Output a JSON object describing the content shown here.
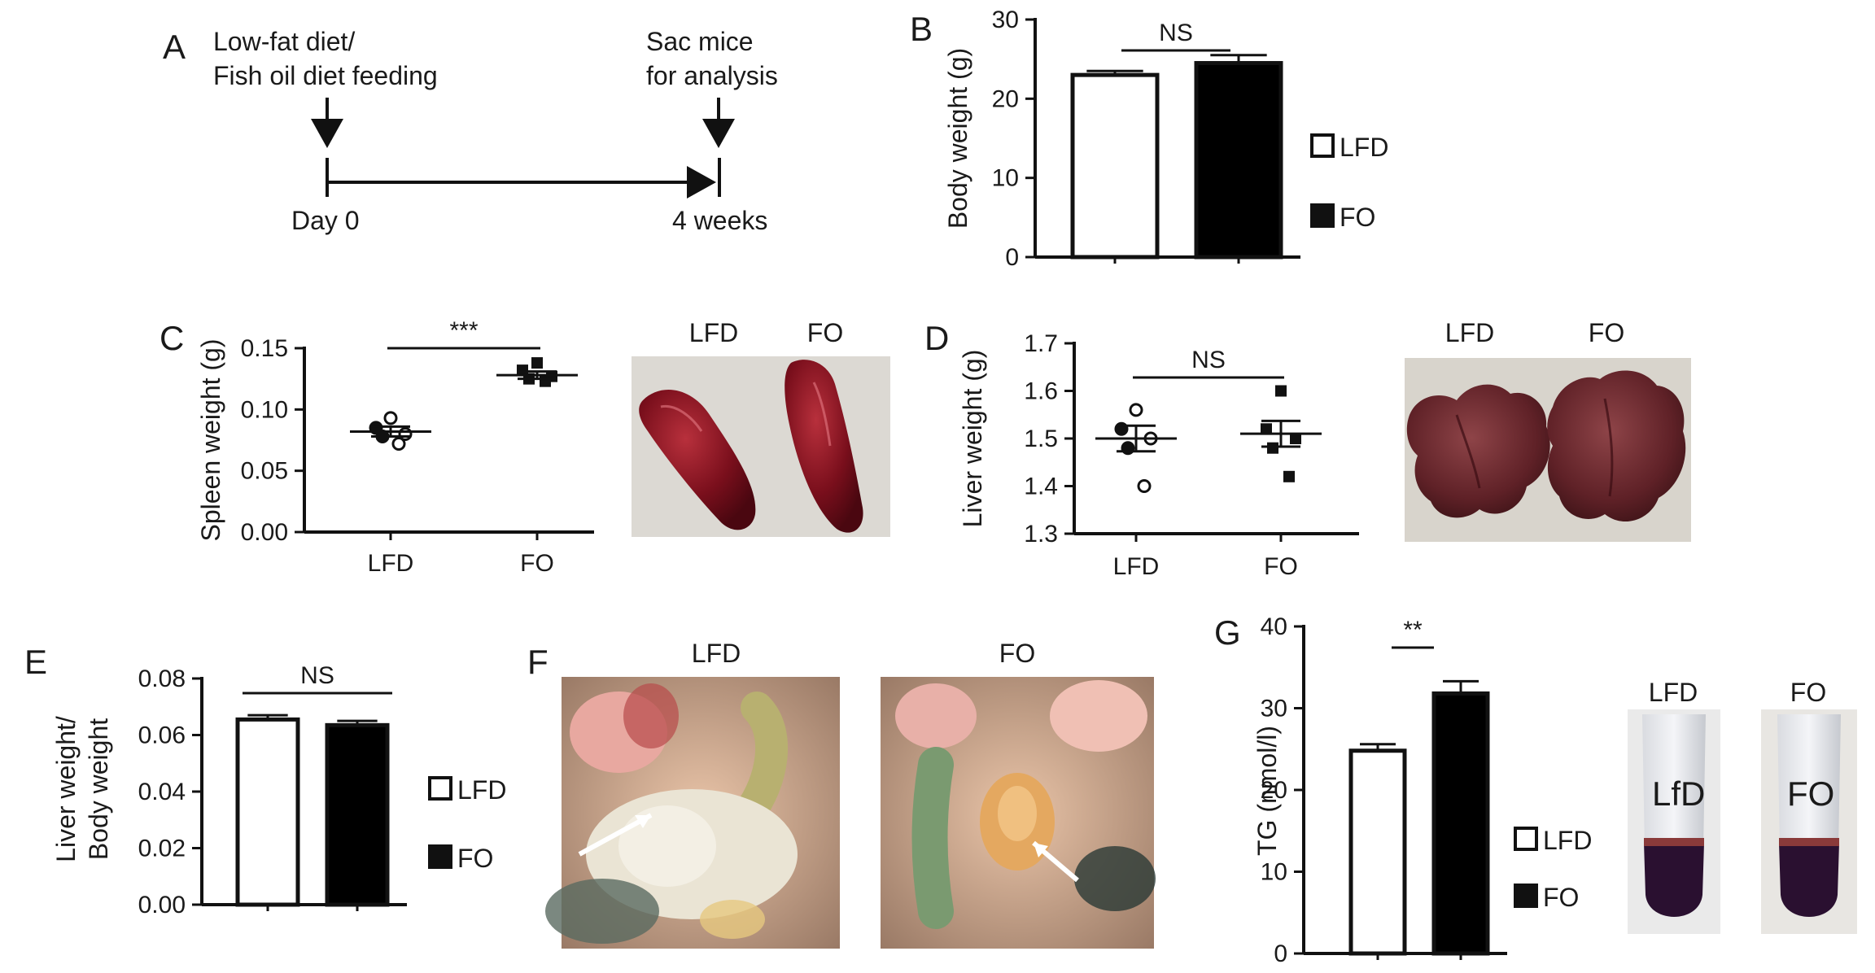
{
  "panel_labels": [
    "A",
    "B",
    "C",
    "D",
    "E",
    "F",
    "G"
  ],
  "timeline": {
    "start_caption_line1": "Low-fat diet/",
    "start_caption_line2": "Fish oil diet feeding",
    "end_caption_line1": "Sac mice",
    "end_caption_line2": "for analysis",
    "start_label": "Day 0",
    "end_label": "4 weeks"
  },
  "legend": {
    "open_label": "LFD",
    "filled_label": "FO"
  },
  "photos": {
    "C": {
      "labels": [
        "LFD",
        "FO"
      ]
    },
    "D": {
      "labels": [
        "LFD",
        "FO"
      ]
    },
    "F": {
      "labels": [
        "LFD",
        "FO"
      ]
    },
    "G": {
      "labels": [
        "LFD",
        "FO"
      ],
      "tube_writing": [
        "LfD",
        "FO"
      ]
    }
  },
  "colors": {
    "bar_open": "#ffffff",
    "bar_filled": "#000000",
    "axis": "#111111",
    "spleen": "#7a0f1c",
    "liver": "#6e2a2e"
  },
  "chart_data": [
    {
      "panel": "B",
      "type": "bar",
      "categories": [
        "LFD",
        "FO"
      ],
      "values": [
        23.0,
        24.5
      ],
      "errors": [
        0.5,
        1.0
      ],
      "ylabel": "Body weight (g)",
      "ylim": [
        0,
        30
      ],
      "yticks": [
        "0",
        "10",
        "20",
        "30"
      ],
      "significance": "NS",
      "legend": [
        "LFD",
        "FO"
      ]
    },
    {
      "panel": "C",
      "type": "scatter",
      "categories": [
        "LFD",
        "FO"
      ],
      "points": [
        [
          0.093,
          0.085,
          0.08,
          0.078,
          0.072
        ],
        [
          0.138,
          0.132,
          0.127,
          0.125,
          0.123
        ]
      ],
      "means": [
        0.082,
        0.128
      ],
      "sem": [
        0.004,
        0.003
      ],
      "ylabel": "Spleen weight (g)",
      "ylim": [
        0,
        0.15
      ],
      "yticks": [
        "0.00",
        "0.05",
        "0.10",
        "0.15"
      ],
      "significance": "***"
    },
    {
      "panel": "D",
      "type": "scatter",
      "categories": [
        "LFD",
        "FO"
      ],
      "points": [
        [
          1.56,
          1.52,
          1.5,
          1.48,
          1.4
        ],
        [
          1.6,
          1.52,
          1.5,
          1.48,
          1.42
        ]
      ],
      "means": [
        1.5,
        1.51
      ],
      "sem": [
        0.027,
        0.027
      ],
      "ylabel": "Liver weight (g)",
      "ylim": [
        1.3,
        1.7
      ],
      "yticks": [
        "1.3",
        "1.4",
        "1.5",
        "1.6",
        "1.7"
      ],
      "significance": "NS"
    },
    {
      "panel": "E",
      "type": "bar",
      "categories": [
        "LFD",
        "FO"
      ],
      "values": [
        0.0655,
        0.0635
      ],
      "errors": [
        0.0015,
        0.0015
      ],
      "ylabel_line1": "Liver weight/",
      "ylabel_line2": "Body weight",
      "ylim": [
        0,
        0.08
      ],
      "yticks": [
        "0.00",
        "0.02",
        "0.04",
        "0.06",
        "0.08"
      ],
      "significance": "NS",
      "legend": [
        "LFD",
        "FO"
      ]
    },
    {
      "panel": "G",
      "type": "bar",
      "categories": [
        "LFD",
        "FO"
      ],
      "values": [
        24.8,
        31.8
      ],
      "errors": [
        0.8,
        1.5
      ],
      "ylabel": "TG (nmol/l)",
      "ylim": [
        0,
        40
      ],
      "yticks": [
        "0",
        "10",
        "20",
        "30",
        "40"
      ],
      "significance": "**",
      "legend": [
        "LFD",
        "FO"
      ]
    }
  ]
}
